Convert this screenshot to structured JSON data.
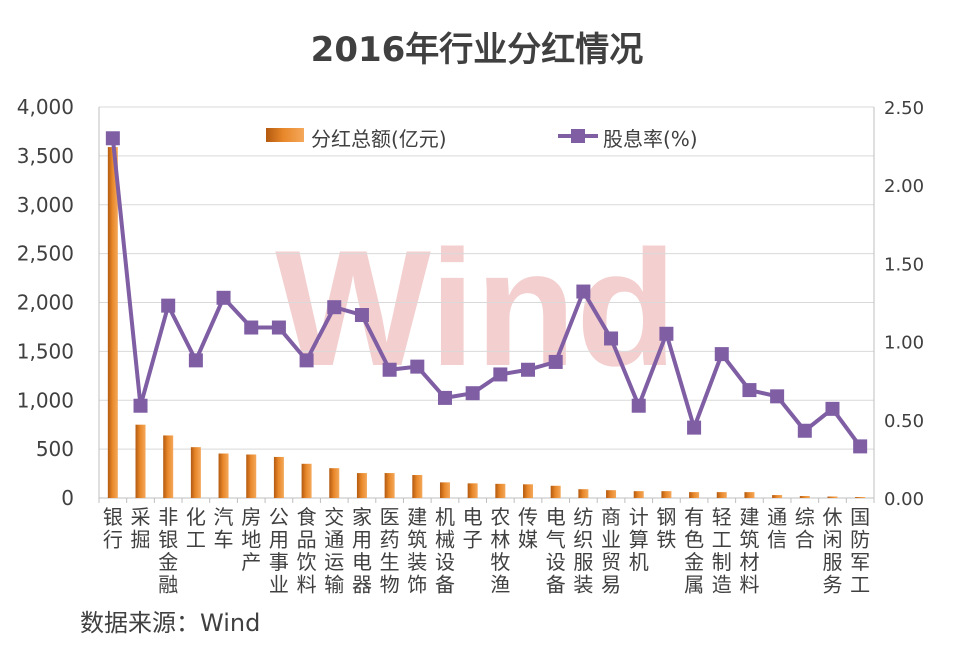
{
  "chart_data": {
    "type": "bar+line",
    "title": "2016年行业分红情况",
    "categories": [
      "银行",
      "采掘",
      "非银金融",
      "化工",
      "汽车",
      "房地产",
      "公用事业",
      "食品饮料",
      "交通运输",
      "家用电器",
      "医药生物",
      "建筑装饰",
      "机械设备",
      "电子",
      "农林牧渔",
      "传媒",
      "电气设备",
      "纺织服装",
      "商业贸易",
      "计算机",
      "钢铁",
      "有色金属",
      "轻工制造",
      "建筑材料",
      "通信",
      "综合",
      "休闲服务",
      "国防军工"
    ],
    "series": [
      {
        "name": "分红总额(亿元)",
        "type": "bar",
        "axis": "left",
        "color": "#E8872A",
        "values": [
          3590,
          750,
          640,
          520,
          455,
          445,
          420,
          350,
          305,
          255,
          255,
          235,
          160,
          150,
          145,
          140,
          125,
          90,
          80,
          70,
          70,
          60,
          60,
          60,
          30,
          20,
          15,
          10
        ]
      },
      {
        "name": "股息率(%)",
        "type": "line",
        "axis": "right",
        "color": "#7F5EA4",
        "values": [
          2.3,
          0.59,
          1.23,
          0.88,
          1.28,
          1.09,
          1.09,
          0.88,
          1.22,
          1.17,
          0.82,
          0.84,
          0.64,
          0.67,
          0.79,
          0.82,
          0.87,
          1.32,
          1.02,
          0.59,
          1.05,
          0.45,
          0.92,
          0.69,
          0.65,
          0.43,
          0.57,
          0.33
        ]
      }
    ],
    "y_left": {
      "min": 0,
      "max": 4000,
      "step": 500,
      "ticks": [
        "0",
        "500",
        "1,000",
        "1,500",
        "2,000",
        "2,500",
        "3,000",
        "3,500",
        "4,000"
      ]
    },
    "y_right": {
      "min": 0,
      "max": 2.5,
      "step": 0.5,
      "ticks": [
        "0.00",
        "0.50",
        "1.00",
        "1.50",
        "2.00",
        "2.50"
      ]
    },
    "grid": true,
    "legend": "top-center",
    "watermark": "Wind"
  },
  "source_text": "数据来源：Wind"
}
